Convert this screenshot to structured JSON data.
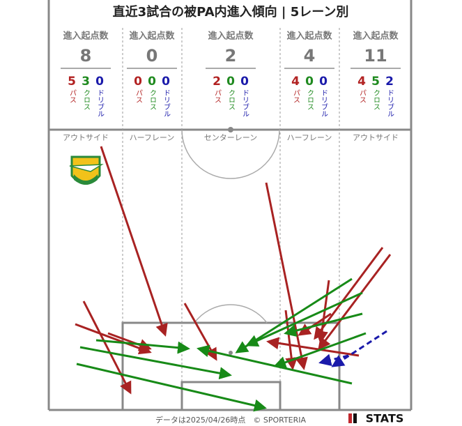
{
  "title": "直近3試合の被PA内進入傾向 | 5レーン別",
  "lanes": [
    {
      "header": "進入起点数",
      "total": 8,
      "stats": [
        {
          "value": 5,
          "label": "パス"
        },
        {
          "value": 3,
          "label": "クロス"
        },
        {
          "value": 0,
          "label": "ドリブル"
        }
      ],
      "name": "アウトサイド"
    },
    {
      "header": "進入起点数",
      "total": 0,
      "stats": [
        {
          "value": 0,
          "label": "パス"
        },
        {
          "value": 0,
          "label": "クロス"
        },
        {
          "value": 0,
          "label": "ドリブル"
        }
      ],
      "name": "ハーフレーン"
    },
    {
      "header": "進入起点数",
      "total": 2,
      "stats": [
        {
          "value": 2,
          "label": "パス"
        },
        {
          "value": 0,
          "label": "クロス"
        },
        {
          "value": 0,
          "label": "ドリブル"
        }
      ],
      "name": "センターレーン"
    },
    {
      "header": "進入起点数",
      "total": 4,
      "stats": [
        {
          "value": 4,
          "label": "パス"
        },
        {
          "value": 0,
          "label": "クロス"
        },
        {
          "value": 0,
          "label": "ドリブル"
        }
      ],
      "name": "ハーフレーン"
    },
    {
      "header": "進入起点数",
      "total": 11,
      "stats": [
        {
          "value": 4,
          "label": "パス"
        },
        {
          "value": 5,
          "label": "クロス"
        },
        {
          "value": 2,
          "label": "ドリブル"
        }
      ],
      "name": "アウトサイド"
    }
  ],
  "footer": {
    "note": "データは2025/04/26時点　© SPORTERIA",
    "brand": "STATS"
  }
}
